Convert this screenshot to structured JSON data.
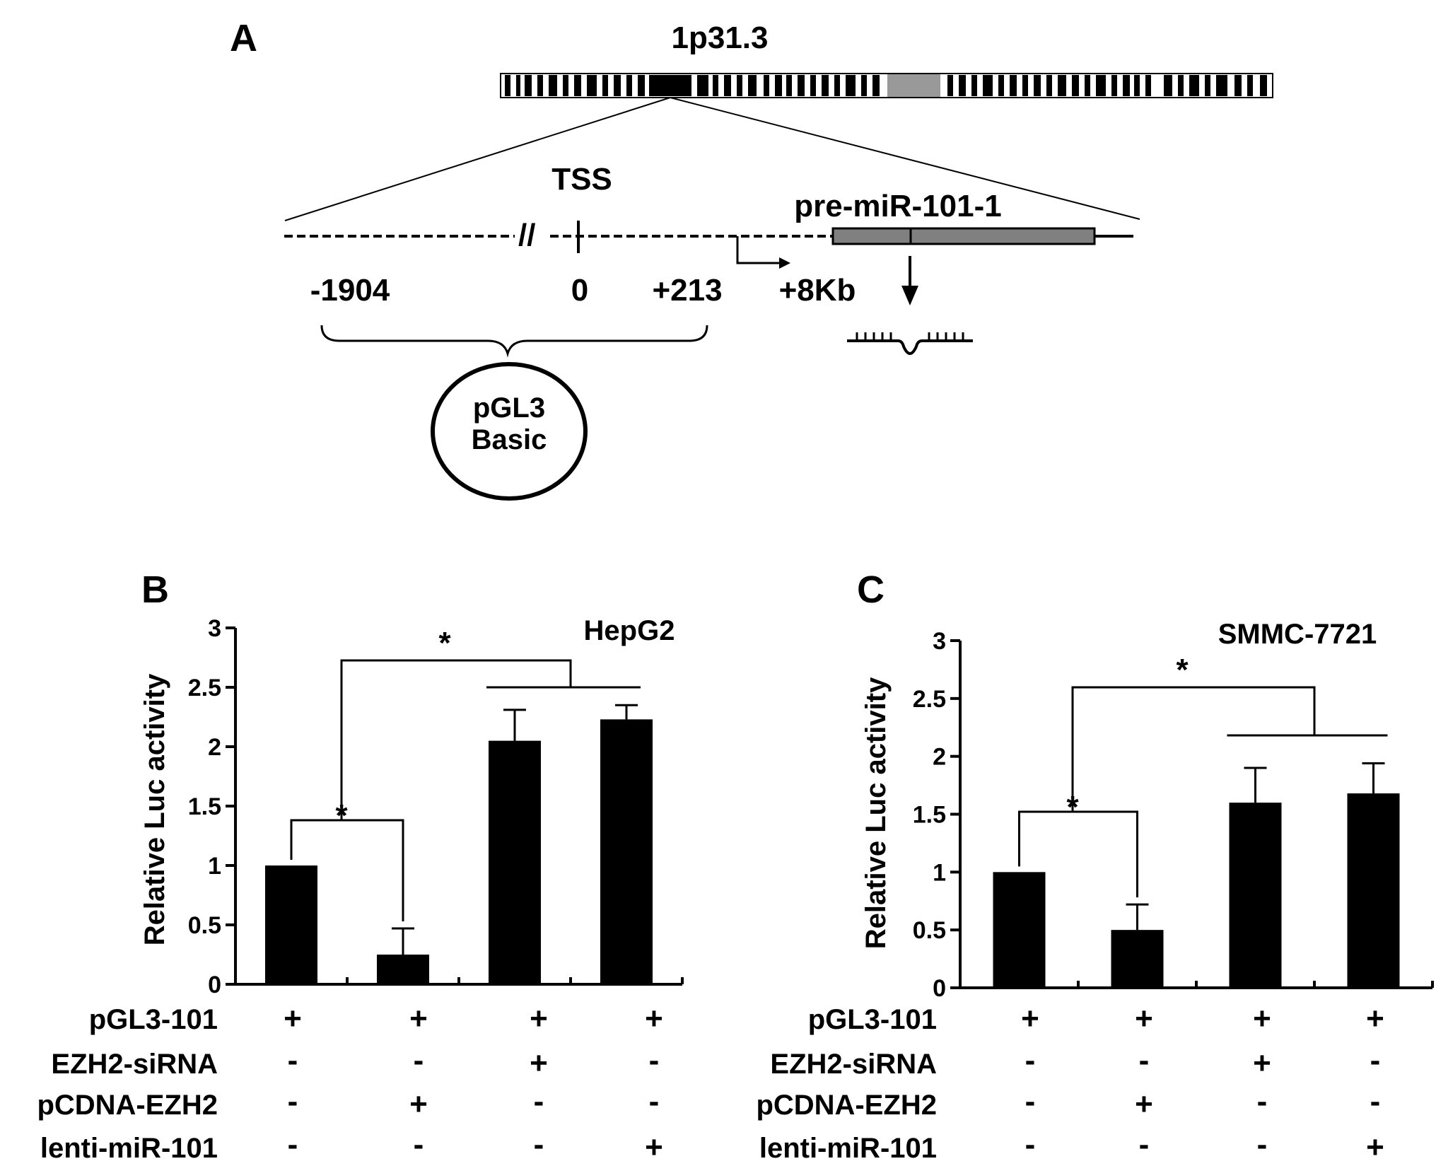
{
  "panel_a": {
    "letter": "A",
    "chromosome_band": "1p31.3",
    "tss_label": "TSS",
    "gene_label": "pre-miR-101-1",
    "positions": [
      "-1904",
      "0",
      "+213",
      "+8Kb"
    ],
    "vector_label_line1": "pGL3",
    "vector_label_line2": "Basic"
  },
  "condition_rows": [
    "pGL3-101",
    "EZH2-siRNA",
    "pCDNA-EZH2",
    "lenti-miR-101"
  ],
  "condition_matrix": [
    [
      "+",
      "+",
      "+",
      "+"
    ],
    [
      "-",
      "-",
      "+",
      "-"
    ],
    [
      "-",
      "+",
      "-",
      "-"
    ],
    [
      "-",
      "-",
      "-",
      "+"
    ]
  ],
  "chart_data": [
    {
      "type": "bar",
      "panel": "B",
      "cell_line": "HepG2",
      "ylabel": "Relative Luc activity",
      "ylim": [
        0,
        3
      ],
      "yticks": [
        "0",
        "0.5",
        "1",
        "1.5",
        "2",
        "2.5",
        "3"
      ],
      "values": [
        1.0,
        0.25,
        2.05,
        2.23
      ],
      "error": [
        0,
        0.22,
        0.26,
        0.12
      ],
      "significance": [
        {
          "from": [
            0
          ],
          "to": [
            1
          ],
          "label": "*"
        },
        {
          "from": [
            0
          ],
          "to": [
            2,
            3
          ],
          "label": "*"
        }
      ]
    },
    {
      "type": "bar",
      "panel": "C",
      "cell_line": "SMMC-7721",
      "ylabel": "Relative Luc activity",
      "ylim": [
        0,
        3
      ],
      "yticks": [
        "0",
        "0.5",
        "1",
        "1.5",
        "2",
        "2.5",
        "3"
      ],
      "values": [
        1.0,
        0.5,
        1.6,
        1.68
      ],
      "error": [
        0,
        0.22,
        0.3,
        0.26
      ],
      "significance": [
        {
          "from": [
            0
          ],
          "to": [
            1
          ],
          "label": "*"
        },
        {
          "from": [
            0
          ],
          "to": [
            2,
            3
          ],
          "label": "*"
        }
      ]
    }
  ]
}
